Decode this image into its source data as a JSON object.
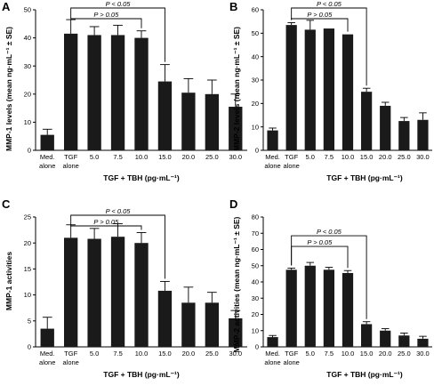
{
  "chart_data": [
    {
      "panel": "A",
      "type": "bar",
      "ylabel": "MMP-1 levels (mean ng·mL⁻¹ ± SE)",
      "xlabel": "TGF + TBH (pg·mL⁻¹)",
      "ylim": [
        0,
        50
      ],
      "yticks": [
        0,
        10,
        20,
        30,
        40,
        50
      ],
      "categories": [
        "Med. alone",
        "TGF alone",
        "5.0",
        "7.5",
        "10.0",
        "15.0",
        "20.0",
        "25.0",
        "30.0"
      ],
      "values": [
        5.5,
        41.5,
        41,
        41,
        40,
        24.5,
        20.5,
        20,
        15.5
      ],
      "errors": [
        2,
        5,
        3,
        3.5,
        2.5,
        6,
        5,
        5,
        4.5
      ],
      "comparisons": [
        {
          "label": "P < 0.05",
          "from": 1,
          "to": 5
        },
        {
          "label": "P > 0.05",
          "from": 1,
          "to": 4
        }
      ]
    },
    {
      "panel": "B",
      "type": "bar",
      "ylabel": "MMP-2 levels (mean ng·mL⁻¹ ± SE)",
      "xlabel": "TGF + TBH (pg·mL⁻¹)",
      "ylim": [
        0,
        60
      ],
      "yticks": [
        0,
        10,
        20,
        30,
        40,
        50,
        60
      ],
      "categories": [
        "Med. alone",
        "TGF alone",
        "5.0",
        "7.5",
        "10.0",
        "15.0",
        "20.0",
        "25.0",
        "30.0"
      ],
      "values": [
        8.5,
        53.5,
        51.5,
        52,
        49.5,
        25,
        19,
        12.5,
        13
      ],
      "errors": [
        1,
        1,
        4,
        0,
        0,
        1.5,
        1.5,
        1.5,
        3
      ],
      "comparisons": [
        {
          "label": "P < 0.05",
          "from": 1,
          "to": 5
        },
        {
          "label": "P > 0.05",
          "from": 1,
          "to": 4
        }
      ]
    },
    {
      "panel": "C",
      "type": "bar",
      "ylabel": "MMP-1 activities",
      "xlabel": "TGF + TBH (pg·mL⁻¹)",
      "ylim": [
        0,
        25
      ],
      "yticks": [
        0,
        5,
        10,
        15,
        20,
        25
      ],
      "categories": [
        "Med. alone",
        "TGF alone",
        "5.0",
        "7.5",
        "10.0",
        "15.0",
        "20.0",
        "25.0",
        "30.0"
      ],
      "values": [
        3.5,
        21,
        20.8,
        21.2,
        20,
        10.8,
        8.5,
        8.5,
        5.5
      ],
      "errors": [
        2.2,
        2.5,
        2,
        2.5,
        2,
        1.8,
        3,
        2,
        1.5
      ],
      "comparisons": [
        {
          "label": "P < 0.05",
          "from": 1,
          "to": 5
        },
        {
          "label": "P > 0.05",
          "from": 1,
          "to": 4
        }
      ]
    },
    {
      "panel": "D",
      "type": "bar",
      "ylabel": "MMP-2 activities (mean ng·mL⁻¹ ± SE)",
      "xlabel": "TGF + TBH (pg·mL⁻¹)",
      "ylim": [
        0,
        80
      ],
      "yticks": [
        0,
        10,
        20,
        30,
        40,
        50,
        60,
        70,
        80
      ],
      "categories": [
        "Med. alone",
        "TGF alone",
        "5.0",
        "7.5",
        "10.0",
        "15.0",
        "20.0",
        "25.0",
        "30.0"
      ],
      "values": [
        6,
        47.5,
        50,
        47.5,
        45.5,
        14,
        10,
        7,
        5
      ],
      "errors": [
        1,
        1,
        2,
        1.5,
        1.5,
        1.5,
        1.2,
        1.5,
        1.5
      ],
      "comparisons": [
        {
          "label": "P < 0.05",
          "from": 1,
          "to": 5
        },
        {
          "label": "P > 0.05",
          "from": 1,
          "to": 4
        }
      ]
    }
  ]
}
